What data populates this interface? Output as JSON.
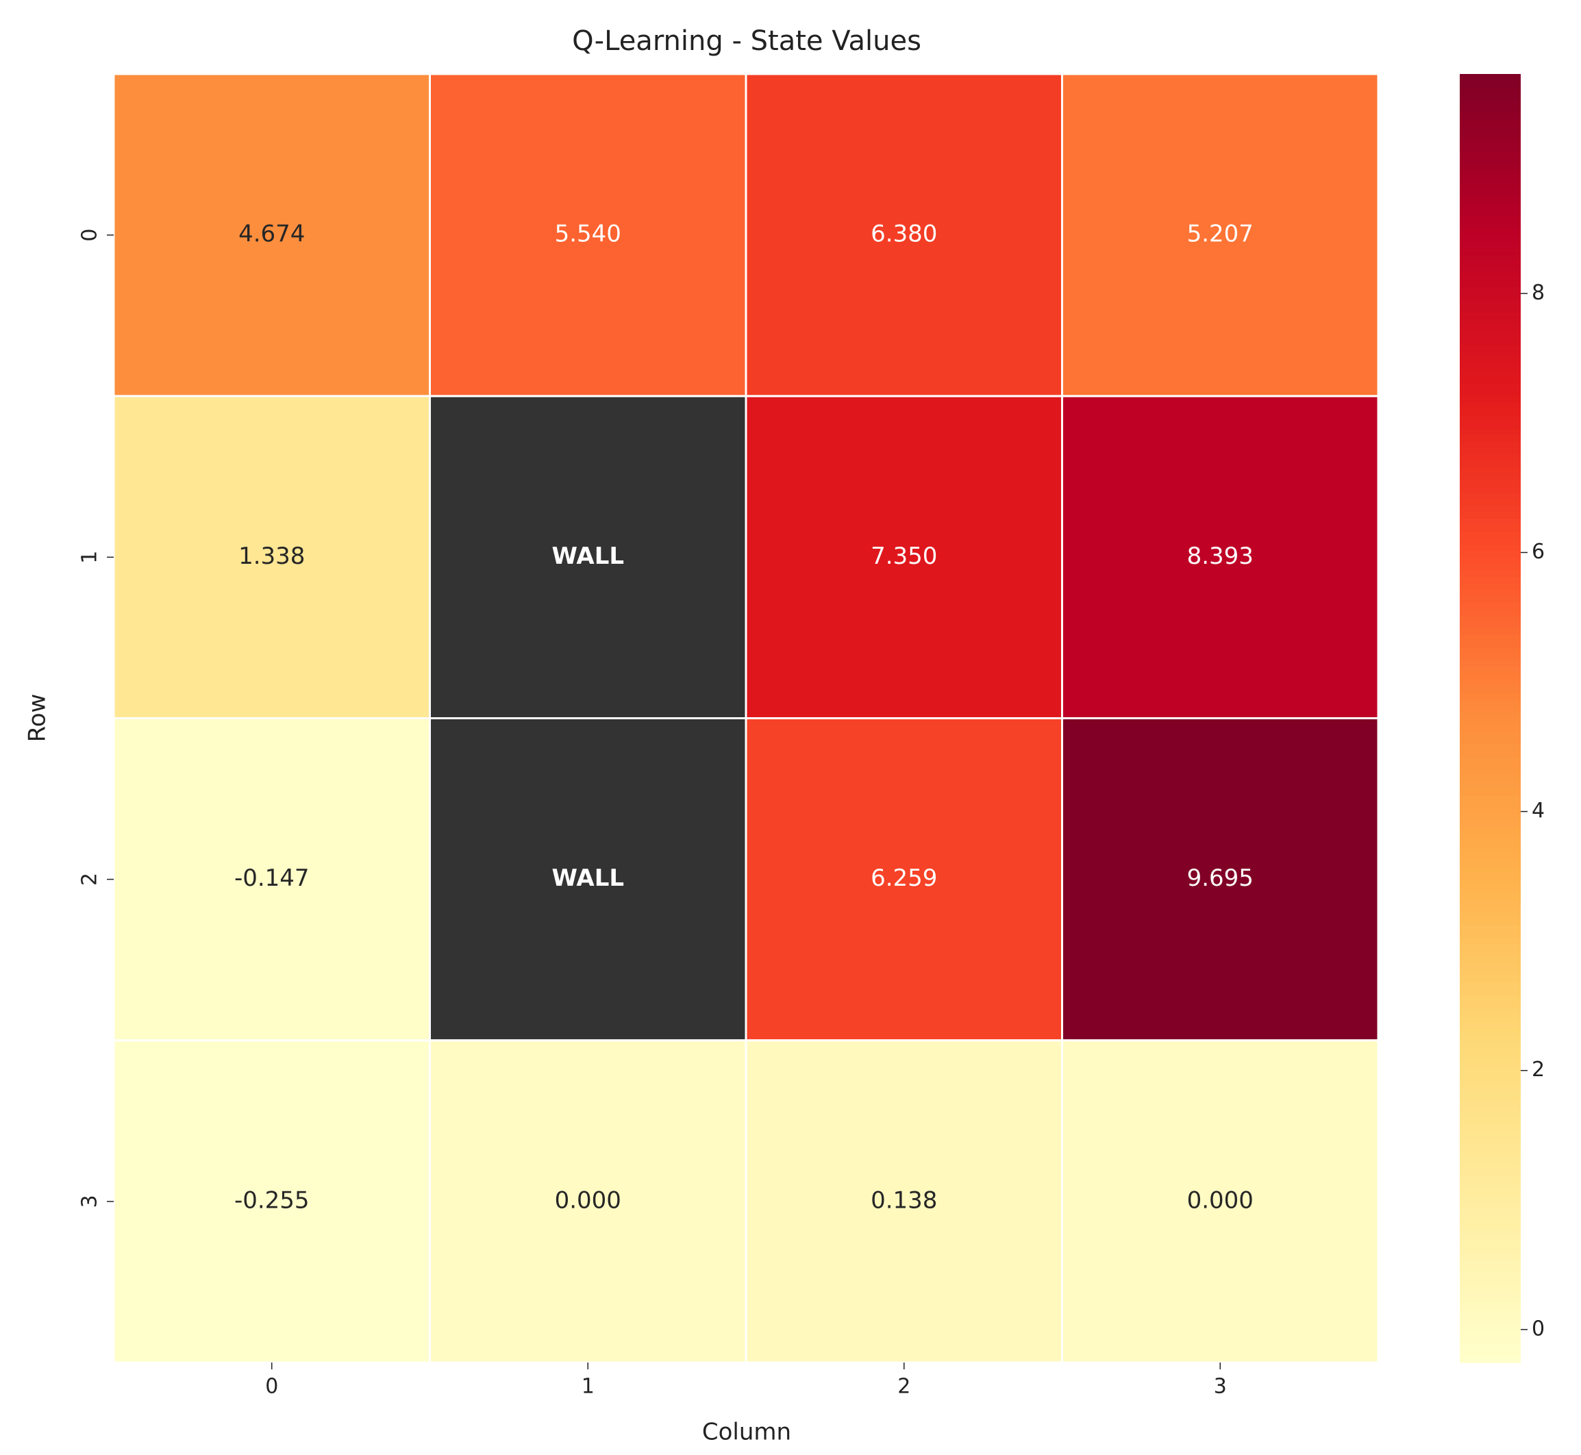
{
  "chart_data": {
    "type": "heatmap",
    "title": "Q-Learning - State Values",
    "x_label": "Column",
    "y_label": "Row",
    "x_categories": [
      "0",
      "1",
      "2",
      "3"
    ],
    "y_categories": [
      "0",
      "1",
      "2",
      "3"
    ],
    "values": [
      [
        4.674,
        5.54,
        6.38,
        5.207
      ],
      [
        1.338,
        null,
        7.35,
        8.393
      ],
      [
        -0.147,
        null,
        6.259,
        9.695
      ],
      [
        -0.255,
        0.0,
        0.138,
        0.0
      ]
    ],
    "value_labels": [
      [
        "4.674",
        "5.540",
        "6.380",
        "5.207"
      ],
      [
        "1.338",
        "WALL",
        "7.350",
        "8.393"
      ],
      [
        "-0.147",
        "WALL",
        "6.259",
        "9.695"
      ],
      [
        "-0.255",
        "0.000",
        "0.138",
        "0.000"
      ]
    ],
    "colormap": [
      "#ffffcc",
      "#ffeda0",
      "#fed976",
      "#feb24c",
      "#fd8d3c",
      "#fc4e2a",
      "#e31a1c",
      "#bd0026",
      "#800026"
    ],
    "mask_color": "#333333",
    "colorbar_lim": [
      -0.255,
      9.695
    ],
    "colorbar_ticks": [
      0,
      2,
      4,
      6,
      8
    ]
  }
}
